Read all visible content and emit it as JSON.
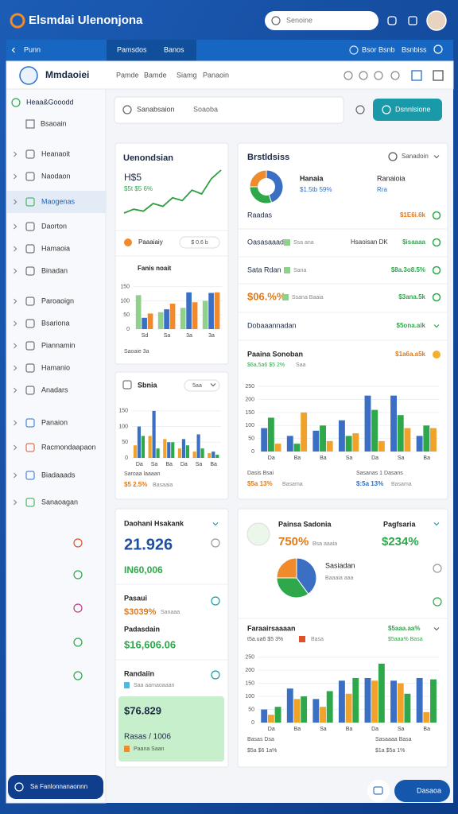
{
  "header": {
    "brand": "Elsmdai Ulenonjona",
    "search_placeholder": "Senoine"
  },
  "tabs": {
    "home": "Punn",
    "items": [
      "Pamsdos",
      "Banos"
    ],
    "right": [
      "Bsor Bsnb",
      "Bsnbiss"
    ]
  },
  "toolbar": {
    "title": "Mmdaoiei",
    "nav": [
      "Pamde",
      "Bamde",
      "Siamg",
      "Panaoin"
    ]
  },
  "sidebar": {
    "section": "Heaa&Gooodd",
    "sub": "Bsaoain",
    "items": [
      "Heanaoit",
      "Naodaon",
      "Maogenas",
      "Daorton",
      "Hamaoia",
      "Binadan",
      "Paroaoign",
      "Bsariona",
      "Piannamin",
      "Hamanio",
      "Anadars",
      "Panaion",
      "Racmondaapaon",
      "Biadaaads",
      "Sanaoagan"
    ],
    "active": 2,
    "button": "Sa Fanlonnanaonnn"
  },
  "search": {
    "placeholder": "Sanabsaion",
    "field": "Soaoba",
    "button": "Dsnnlsione"
  },
  "overview": {
    "title": "Uenondsian",
    "metric": "H$5",
    "change": "$5t $5 6%",
    "trend": {
      "type": "line",
      "color": "#2e9e3e",
      "values": [
        10,
        14,
        12,
        20,
        17,
        26,
        23,
        34,
        30,
        46,
        55
      ]
    },
    "activity": "Paaaiaiy",
    "activity_value": "$ 0.6 b",
    "chart": {
      "type": "bar",
      "title": "Fanis noait",
      "categories": [
        "Sd",
        "Sa",
        "3a",
        "3a"
      ],
      "series": [
        {
          "color": "#8fd18a",
          "values": [
            120,
            60,
            75,
            100
          ]
        },
        {
          "color": "#3a6fc4",
          "values": [
            40,
            70,
            130,
            128
          ]
        },
        {
          "color": "#f08a2a",
          "values": [
            55,
            90,
            95,
            130
          ]
        }
      ],
      "ylim": [
        0,
        180
      ],
      "yticks": [
        0,
        50,
        100,
        150
      ]
    },
    "footer": "Saoaie 3a"
  },
  "small_chart": {
    "title": "Sbnia",
    "pill": "5aa",
    "chart": {
      "type": "bar",
      "categories": [
        "Da",
        "Sa",
        "Ba",
        "Da",
        "Sa",
        "Ba"
      ],
      "series": [
        {
          "color": "#f0a22a",
          "values": [
            40,
            70,
            60,
            30,
            20,
            15
          ]
        },
        {
          "color": "#3a6fc4",
          "values": [
            100,
            150,
            50,
            60,
            75,
            20
          ]
        },
        {
          "color": "#2ea84a",
          "values": [
            70,
            30,
            50,
            40,
            30,
            10
          ]
        }
      ],
      "ylim": [
        0,
        180
      ],
      "yticks": [
        0,
        50,
        100,
        150
      ]
    },
    "footer": "Saroaa laaaan",
    "change": "$5 2.5%",
    "change_note": "Basaaia"
  },
  "breakdown": {
    "title": "Brstldsiss",
    "filter": "Sanadoin",
    "donut": {
      "type": "pie",
      "colors": [
        "#3a6fc4",
        "#2ea84a",
        "#f08a2a"
      ],
      "values": [
        45,
        30,
        25
      ]
    },
    "donut_label": "Hanaia",
    "donut_value": "$1.5tb 59%",
    "side_label": "Ranaioia",
    "side_value": "Rra",
    "rows": [
      {
        "label": "Raadas",
        "value": "$1E6i.6k",
        "value_color": "#e07a1a"
      },
      {
        "label": "Oasasaaad",
        "note": "Ssa ana",
        "mid": "Hsaoisan DK",
        "value": "$isaaaa",
        "value_color": "#2ea84a"
      },
      {
        "label": "Sata Rdan",
        "note": "Sana",
        "value": "$8a.3o8.5%",
        "value_color": "#2ea84a"
      },
      {
        "label": "$06.%%",
        "note": "Ssana Baaia",
        "value": "$3ana.5k",
        "value_color": "#2ea84a"
      },
      {
        "label": "Dobaaannadan",
        "value": "$5ona.aik",
        "value_color": "#2ea84a"
      }
    ],
    "chart_title": "Paaina Sonoban",
    "chart_value": "$1a6a.a5k",
    "chart_change": "$6a,5a6 $5 2%",
    "chart_note": "Saa",
    "chart": {
      "type": "bar",
      "categories": [
        "Da",
        "Ba",
        "Ba",
        "Sa",
        "Da",
        "Sa",
        "Ba"
      ],
      "series": [
        {
          "color": "#3a6fc4",
          "values": [
            90,
            60,
            80,
            120,
            215,
            215,
            60
          ]
        },
        {
          "color": "#2ea84a",
          "values": [
            130,
            30,
            100,
            60,
            160,
            140,
            100
          ]
        },
        {
          "color": "#f0a22a",
          "values": [
            30,
            150,
            40,
            70,
            40,
            90,
            90
          ]
        }
      ],
      "ylim": [
        0,
        275
      ],
      "yticks": [
        0,
        50,
        100,
        150,
        200,
        250
      ]
    },
    "footer": [
      "Dasis Bsai",
      "Sasanas 1 Dasans"
    ],
    "footer_values": [
      "$5a 13%",
      "$:5a 13%"
    ],
    "footer_notes": [
      "Basama",
      "Basama"
    ]
  },
  "kpis": {
    "title": "Daohani Hsakank",
    "big": "21.926",
    "big_sub": "IN60,006",
    "a_label": "Pasaui",
    "a_value": "$3039%",
    "a_note": "Sanaaa",
    "b_label": "Padasdain",
    "b_value": "$16,606.06",
    "c_label": "Randaiin",
    "c_note": "Saa aamaoaaan",
    "box_value": "$76.829",
    "box_label": "Rasas / 1006",
    "box_note": "Paana Saan"
  },
  "distribution": {
    "title": "Painsa Sadonia",
    "value": "750%",
    "note": "Bsa aaaia",
    "right_title": "Pagfsaria",
    "right_value": "$234%",
    "pie": {
      "type": "pie",
      "colors": [
        "#3a6fc4",
        "#2ea84a",
        "#f08a2a"
      ],
      "values": [
        40,
        35,
        25
      ]
    },
    "pie_label": "Sasiadan",
    "pie_note": "Baaaia aaa",
    "chart_title": "Faraairsaaaan",
    "chart_value": "$5aaa.aa%",
    "chart_change": "t5a.ua6 $5 3%",
    "chart_note": "Basa",
    "chart_right": "$5aaa% Basa",
    "chart": {
      "type": "bar",
      "categories": [
        "Da",
        "Ba",
        "Sa",
        "Ba",
        "Da",
        "Sa",
        "Ba"
      ],
      "series": [
        {
          "color": "#3a6fc4",
          "values": [
            50,
            130,
            90,
            160,
            170,
            160,
            170
          ]
        },
        {
          "color": "#f0a22a",
          "values": [
            30,
            90,
            60,
            110,
            160,
            150,
            40
          ]
        },
        {
          "color": "#2ea84a",
          "values": [
            60,
            100,
            120,
            170,
            225,
            110,
            165
          ]
        }
      ],
      "ylim": [
        0,
        270
      ],
      "yticks": [
        0,
        50,
        100,
        150,
        200,
        250
      ]
    },
    "footer": [
      "Basas Dsa",
      "Sasaaaa Basa"
    ],
    "footer_values": [
      "$5a $6 1a%",
      "$1a $5a 1%"
    ]
  },
  "footer": {
    "button": "Dasaoa"
  }
}
